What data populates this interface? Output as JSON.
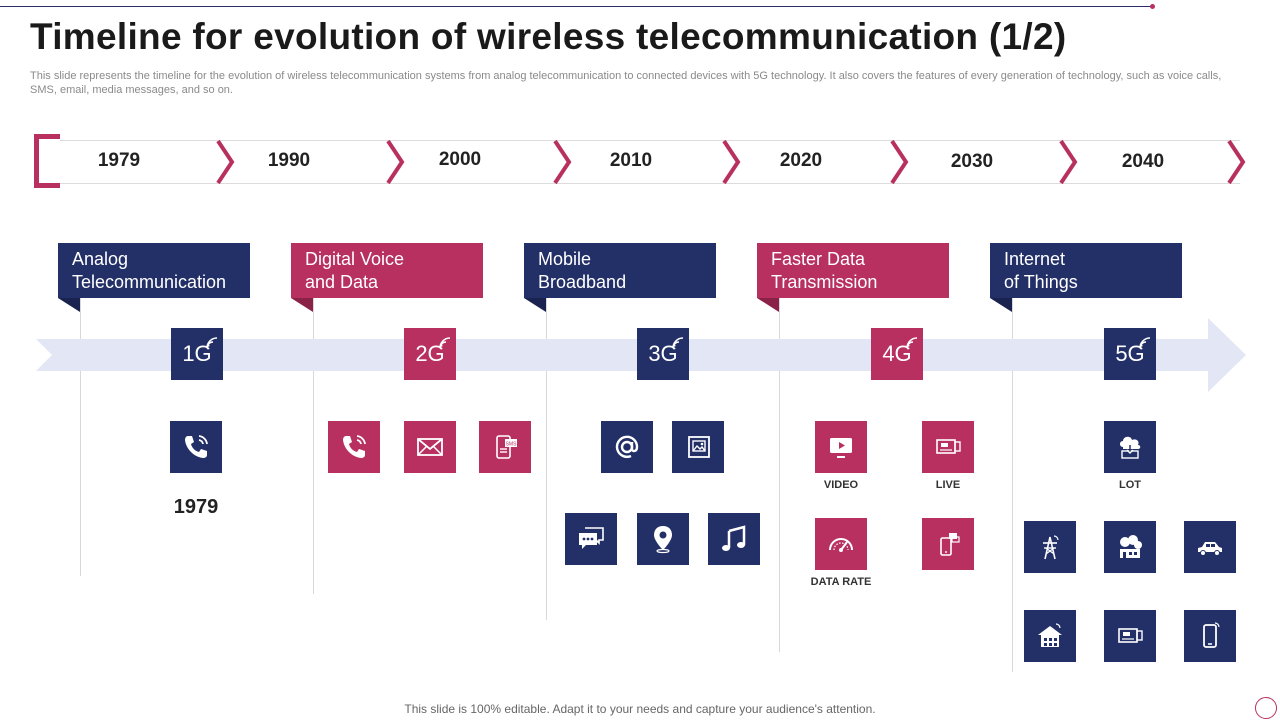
{
  "title": "Timeline for evolution of wireless telecommunication (1/2)",
  "subtitle": "This slide represents the timeline for the evolution of wireless telecommunication systems from analog telecommunication to connected devices with 5G technology. It also covers the features of every generation of technology, such as voice calls, SMS,  email, media messages, and so on.",
  "years": [
    "1979",
    "1990",
    "2000",
    "2010",
    "2020",
    "2030",
    "2040"
  ],
  "generations": [
    {
      "header": "Analog\nTelecommunication",
      "label": "1G",
      "color": "#233068"
    },
    {
      "header": "Digital Voice\nand Data",
      "label": "2G",
      "color": "#b8305f"
    },
    {
      "header": "Mobile\nBroadband",
      "label": "3G",
      "color": "#233068"
    },
    {
      "header": "Faster Data\nTransmission",
      "label": "4G",
      "color": "#b8305f"
    },
    {
      "header": "Internet\nof Things",
      "label": "5G",
      "color": "#233068"
    }
  ],
  "features": {
    "g1_year": "1979",
    "video_caption": "VIDEO",
    "live_caption": "LIVE",
    "data_rate_caption": "DATA RATE",
    "lot_caption": "LOT"
  },
  "icons": [
    "phone-call-icon",
    "phone-call-icon",
    "envelope-icon",
    "sms-phone-icon",
    "at-sign-icon",
    "media-image-icon",
    "chat-bubbles-icon",
    "location-pin-icon",
    "music-note-icon",
    "video-play-icon",
    "live-tv-icon",
    "speedometer-icon",
    "mobile-chat-icon",
    "cloud-iot-icon",
    "transmission-tower-icon",
    "smart-factory-icon",
    "connected-car-icon",
    "smart-home-icon",
    "smart-tv-icon",
    "smartphone-icon"
  ],
  "colors": {
    "navy": "#233068",
    "pink": "#b8305f",
    "band": "#e3e6f4"
  },
  "footer": "This slide is 100% editable. Adapt it to your needs and capture your audience's attention."
}
